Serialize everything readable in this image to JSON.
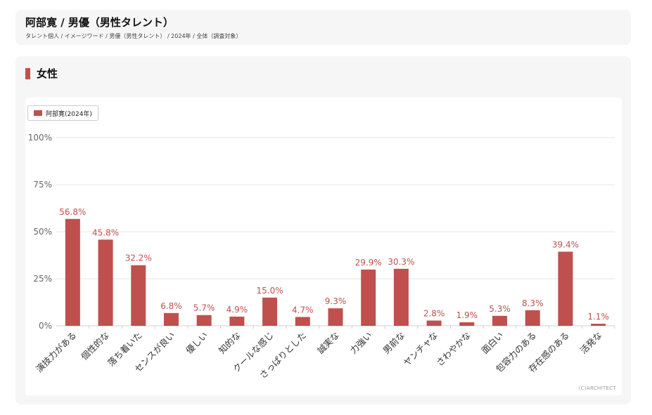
{
  "header": {
    "title": "阿部寛 / 男優（男性タレント）",
    "breadcrumb": "タレント個人 / イメージワード / 男優（男性タレント） / 2024年 / 全体（調査対象）"
  },
  "section": {
    "title": "女性"
  },
  "copyright": "(C)ARCHITECT",
  "colors": {
    "bar": "#c0504d",
    "grid": "#e5e5e5"
  },
  "chart_data": {
    "type": "bar",
    "categories": [
      "演技力がある",
      "個性的な",
      "落ち着いた",
      "センスが良い",
      "優しい",
      "知的な",
      "クールな感じ",
      "さっぱりとした",
      "誠実な",
      "力強い",
      "男前な",
      "ヤンチャな",
      "さわやかな",
      "面白い",
      "包容力のある",
      "存在感のある",
      "活発な"
    ],
    "series": [
      {
        "name": "阿部寛(2024年)",
        "values": [
          56.8,
          45.8,
          32.2,
          6.8,
          5.7,
          4.9,
          15.0,
          4.7,
          9.3,
          29.9,
          30.3,
          2.8,
          1.9,
          5.3,
          8.3,
          39.4,
          1.1
        ],
        "labels": [
          "56.8%",
          "45.8%",
          "32.2%",
          "6.8%",
          "5.7%",
          "4.9%",
          "15.0%",
          "4.7%",
          "9.3%",
          "29.9%",
          "30.3%",
          "2.8%",
          "1.9%",
          "5.3%",
          "8.3%",
          "39.4%",
          "1.1%"
        ]
      }
    ],
    "yticks": [
      "0%",
      "25%",
      "50%",
      "75%",
      "100%"
    ],
    "ylim": [
      0,
      100
    ],
    "legend_position": "top-left",
    "grid": true
  }
}
